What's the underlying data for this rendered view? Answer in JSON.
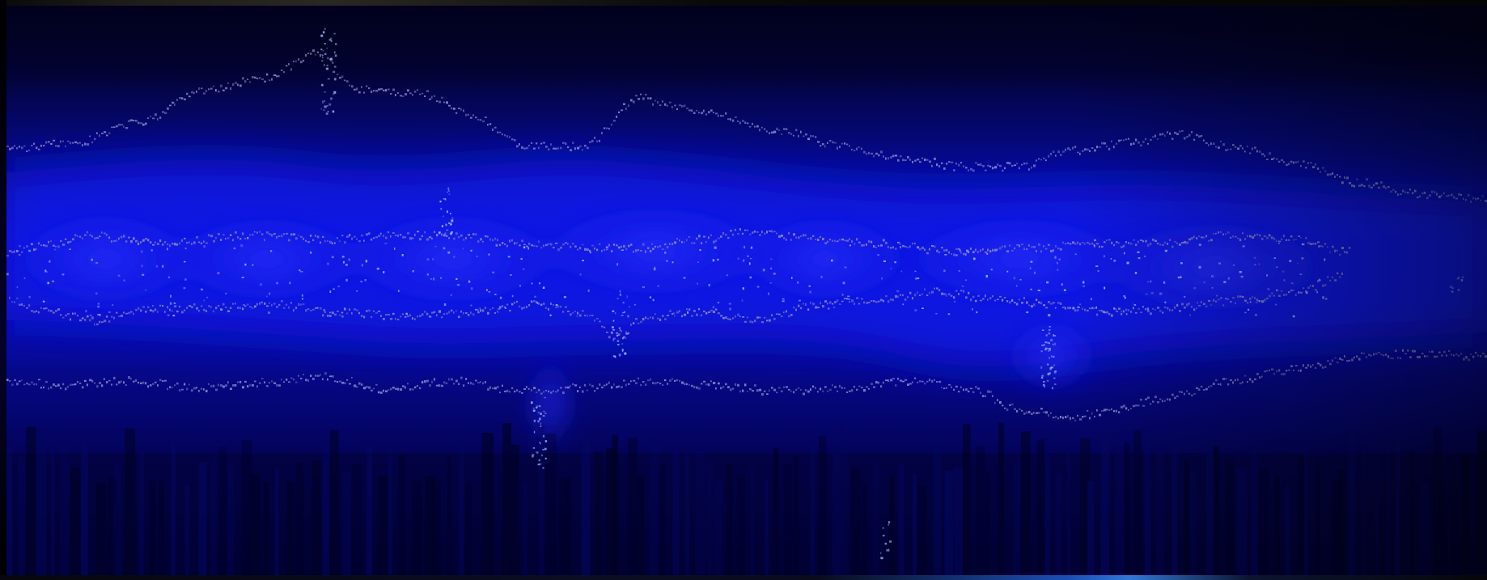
{
  "image": {
    "subject": "spectrogram",
    "palette": {
      "background": "#000000",
      "deep": "#02024a",
      "mid": "#0a0ad0",
      "bright": "#2a3cff",
      "trace": "#8a86c8",
      "sparkle": "#9fb4ff"
    }
  }
}
